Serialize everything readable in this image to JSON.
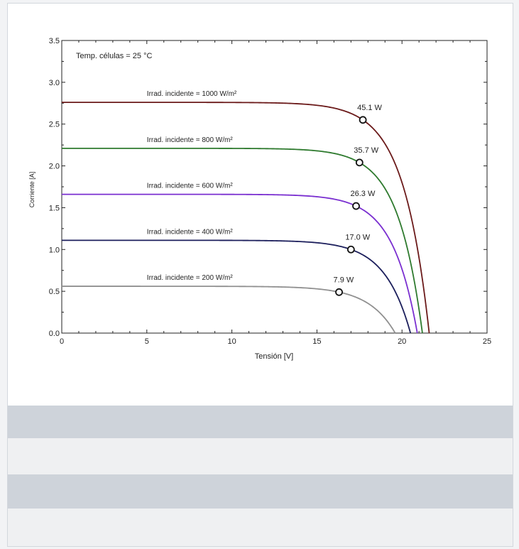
{
  "chart_data": {
    "type": "line",
    "annotation": "Temp. células = 25 °C",
    "xlabel": "Tensión [V]",
    "ylabel": "Corriente [A]",
    "xlim": [
      0,
      25
    ],
    "ylim": [
      0,
      3.5
    ],
    "x_ticks": [
      "0",
      "5",
      "10",
      "15",
      "20",
      "25"
    ],
    "y_ticks": [
      "0.0",
      "0.5",
      "1.0",
      "1.5",
      "2.0",
      "2.5",
      "3.0",
      "3.5"
    ],
    "grid": false,
    "series": [
      {
        "name": "Irrad. incidente = 1000 W/m²",
        "color": "#6b1a1a",
        "isc": 2.76,
        "voc": 21.6,
        "mpp_v": 17.7,
        "mpp_i": 2.55,
        "power_label": "45.1 W"
      },
      {
        "name": "Irrad. incidente = 800 W/m²",
        "color": "#2e7a2e",
        "isc": 2.21,
        "voc": 21.2,
        "mpp_v": 17.5,
        "mpp_i": 2.04,
        "power_label": "35.7 W"
      },
      {
        "name": "Irrad. incidente = 600 W/m²",
        "color": "#7a2fd0",
        "isc": 1.66,
        "voc": 20.9,
        "mpp_v": 17.3,
        "mpp_i": 1.52,
        "power_label": "26.3 W"
      },
      {
        "name": "Irrad. incidente = 400 W/m²",
        "color": "#1c1f5c",
        "isc": 1.11,
        "voc": 20.5,
        "mpp_v": 17.0,
        "mpp_i": 1.0,
        "power_label": "17.0 W"
      },
      {
        "name": "Irrad. incidente = 200 W/m²",
        "color": "#909090",
        "isc": 0.56,
        "voc": 19.6,
        "mpp_v": 16.3,
        "mpp_i": 0.49,
        "power_label": "7.9 W"
      }
    ]
  }
}
